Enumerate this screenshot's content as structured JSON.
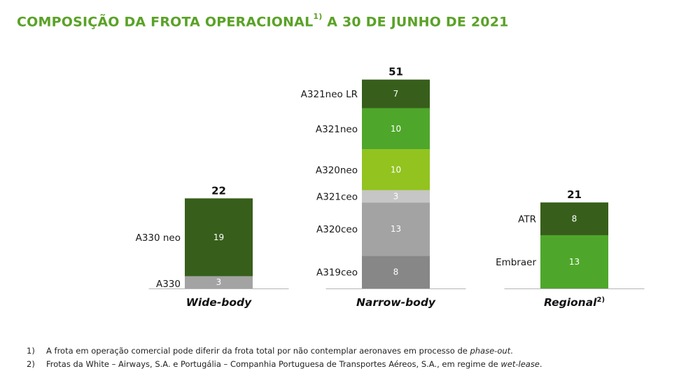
{
  "title": {
    "main": "COMPOSIÇÃO DA FROTA OPERACIONAL",
    "sup": "1)",
    "rest": " A 30 DE JUNHO DE 2021"
  },
  "colors": {
    "title": "#5aa227",
    "dark_green": "#375f1b",
    "mid_green": "#4ea72a",
    "light_green": "#92c31f",
    "light_gray": "#c6c6c6",
    "mid_gray": "#a3a3a3",
    "dark_gray": "#878787"
  },
  "chart_data": {
    "type": "bar",
    "stacked": true,
    "categories": [
      "Wide-body",
      "Narrow-body",
      "Regional"
    ],
    "category_superscripts": [
      "",
      "",
      "2)"
    ],
    "totals": [
      22,
      51,
      21
    ],
    "stacks": [
      {
        "category": "Wide-body",
        "segments": [
          {
            "label": "A330",
            "value": 3,
            "color": "#a3a3a3"
          },
          {
            "label": "A330 neo",
            "value": 19,
            "color": "#375f1b"
          }
        ]
      },
      {
        "category": "Narrow-body",
        "segments": [
          {
            "label": "A319ceo",
            "value": 8,
            "color": "#878787"
          },
          {
            "label": "A320ceo",
            "value": 13,
            "color": "#a3a3a3"
          },
          {
            "label": "A321ceo",
            "value": 3,
            "color": "#c6c6c6"
          },
          {
            "label": "A320neo",
            "value": 10,
            "color": "#92c31f"
          },
          {
            "label": "A321neo",
            "value": 10,
            "color": "#4ea72a"
          },
          {
            "label": "A321neo LR",
            "value": 7,
            "color": "#375f1b"
          }
        ]
      },
      {
        "category": "Regional",
        "segments": [
          {
            "label": "Embraer",
            "value": 13,
            "color": "#4ea72a"
          },
          {
            "label": "ATR",
            "value": 8,
            "color": "#375f1b"
          }
        ]
      }
    ]
  },
  "footnotes": [
    {
      "num": "1)",
      "text": "A frota em operação comercial pode diferir da frota total por não contemplar aeronaves em processo de ",
      "italic": "phase-out",
      "end": "."
    },
    {
      "num": "2)",
      "text": "Frotas da White – Airways, S.A. e Portugália – Companhia Portuguesa de Transportes Aéreos, S.A., em regime de ",
      "italic": "wet-lease",
      "end": "."
    }
  ]
}
